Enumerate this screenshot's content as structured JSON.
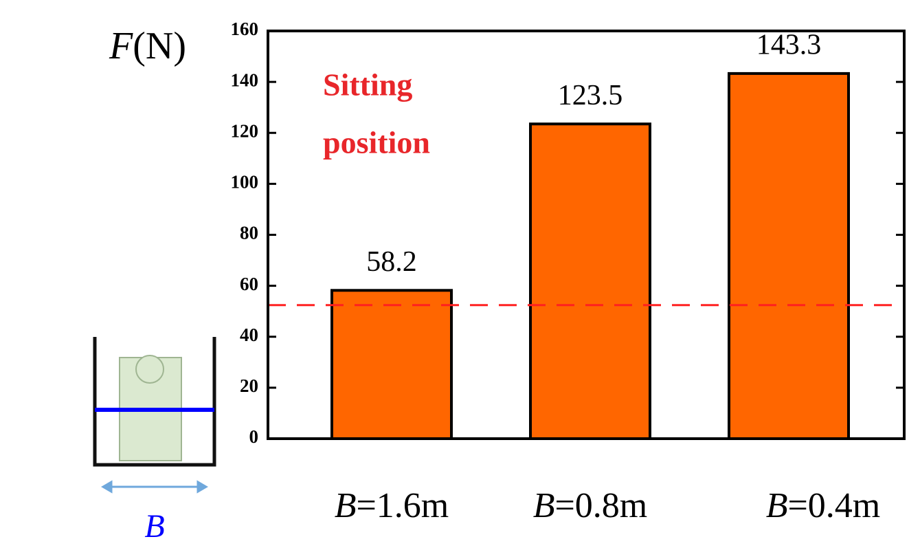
{
  "chart_data": {
    "type": "bar",
    "y_label": "F(N)",
    "annotation": [
      "Sitting",
      "position"
    ],
    "categories": [
      "B=1.6m",
      "B=0.8m",
      "B=0.4m"
    ],
    "values": [
      58.2,
      123.5,
      143.3
    ],
    "color": "#ff6600",
    "ylim": [
      0,
      160
    ],
    "yticks": [
      0,
      20,
      40,
      60,
      80,
      100,
      120,
      140,
      160
    ],
    "reference_line": {
      "value": 52.4,
      "color": "#ff2020"
    },
    "illustration": {
      "label": "B"
    }
  }
}
